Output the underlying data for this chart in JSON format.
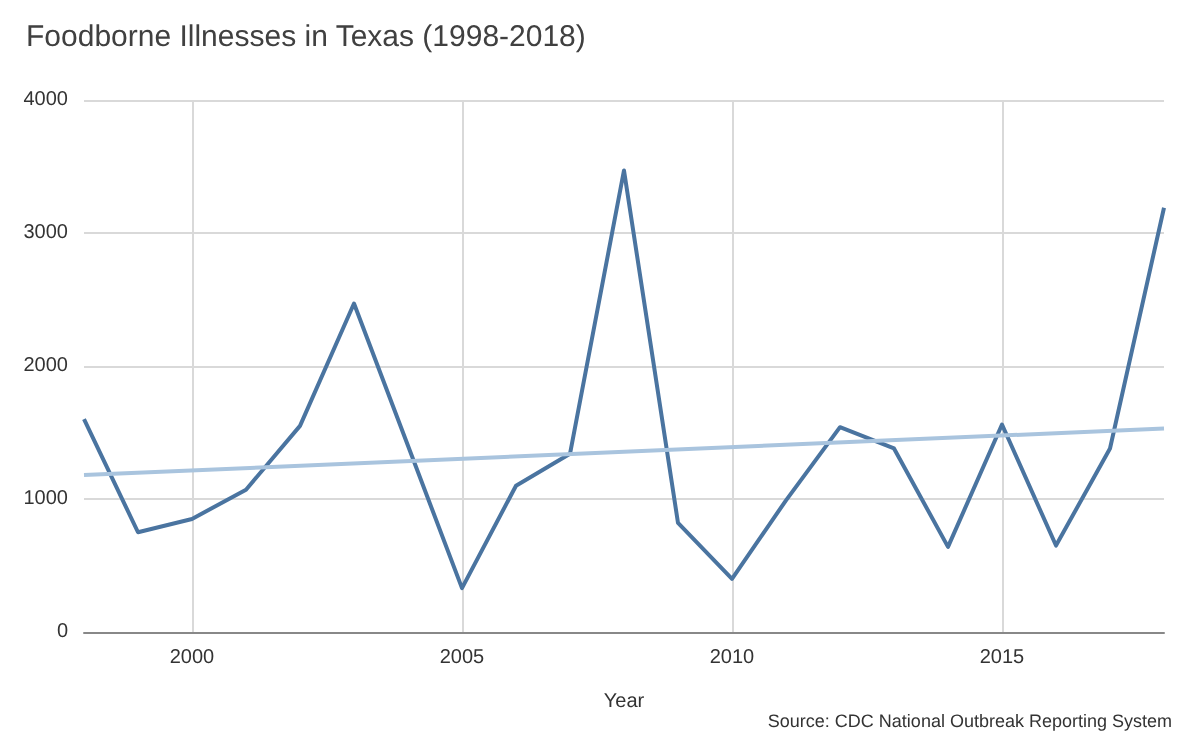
{
  "chart_data": {
    "type": "line",
    "title": "Foodborne Illnesses in Texas (1998-2018)",
    "xlabel": "Year",
    "x": [
      1998,
      1999,
      2000,
      2001,
      2002,
      2003,
      2004,
      2005,
      2006,
      2007,
      2008,
      2009,
      2010,
      2011,
      2012,
      2013,
      2014,
      2015,
      2016,
      2017,
      2018
    ],
    "series": [
      {
        "color": "#4a74a0",
        "values": [
          1600,
          750,
          850,
          1070,
          1550,
          2470,
          1400,
          330,
          1100,
          1340,
          3470,
          820,
          400,
          990,
          1540,
          1380,
          640,
          1560,
          650,
          1380,
          3190
        ]
      },
      {
        "color": "#a9c4de",
        "x": [
          1998,
          2018
        ],
        "values": [
          1180,
          1530
        ]
      }
    ],
    "xlim": [
      1998,
      2018
    ],
    "xticks": [
      2000,
      2005,
      2010,
      2015
    ],
    "ylim": [
      0,
      4000
    ],
    "yticks": [
      0,
      1000,
      2000,
      3000,
      4000
    ],
    "grid": true,
    "marker": "none",
    "line_style": "solid",
    "annotations": [
      "Source: CDC National Outbreak Reporting System"
    ]
  }
}
